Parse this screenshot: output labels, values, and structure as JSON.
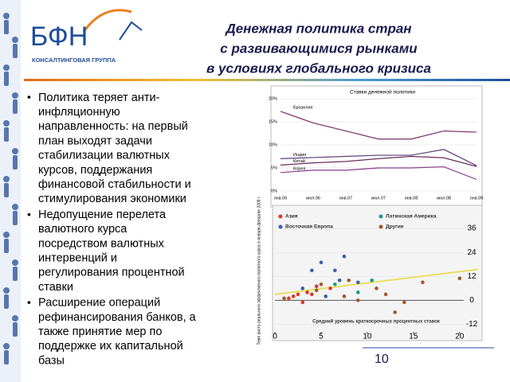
{
  "logo": {
    "name": "БФН",
    "subtitle": "КОНСАЛТИНГОВАЯ ГРУППА"
  },
  "title": [
    "Денежная политика стран",
    "с развивающимися рынками",
    "в условиях глобального кризиса"
  ],
  "bullets": [
    [
      "Политика теряет анти-",
      "инфляционную",
      "направленность: на первый",
      "план выходят задачи",
      "стабилизации валютных",
      "курсов, поддержания",
      "финансовой стабильности и",
      "стимулирования экономики"
    ],
    [
      "Недопущение перелета",
      "валютного курса",
      "посредством валютных",
      "интервенций и",
      "регулирования процентной",
      "ставки"
    ],
    [
      "Расширение операций",
      "рефинансирования банков, а",
      "также принятие мер по",
      "поддержке их капитальной",
      "базы"
    ]
  ],
  "page_number": "10",
  "chart_data": [
    {
      "type": "line",
      "title": "Ставки денежной политики",
      "categories": [
        "янв.06",
        "июл.06",
        "янв.07",
        "июл.07",
        "янв.08",
        "июл.08",
        "янв.09"
      ],
      "ylim": [
        0,
        20
      ],
      "yticks": [
        {
          "value": 0,
          "label": "0%"
        },
        {
          "value": 5,
          "label": "5%"
        },
        {
          "value": 10,
          "label": "10%"
        },
        {
          "value": 15,
          "label": "15%"
        },
        {
          "value": 20,
          "label": "20%"
        }
      ],
      "series": [
        {
          "name": "Бразилия",
          "color": "#7b2d6b",
          "values": [
            17.25,
            14.75,
            13,
            11.25,
            11.25,
            13,
            12.75
          ]
        },
        {
          "name": "Индия",
          "color": "#5a3d7a",
          "values": [
            7,
            7.25,
            7.5,
            7.75,
            7.75,
            9,
            5.5
          ]
        },
        {
          "name": "Китай",
          "color": "#6b2d5b",
          "values": [
            5.6,
            6.1,
            6.4,
            7,
            7.5,
            7.2,
            5.3
          ]
        },
        {
          "name": "Корея",
          "color": "#8a3a8a",
          "values": [
            4,
            4.5,
            4.5,
            5,
            5,
            5.25,
            2.5
          ]
        }
      ]
    },
    {
      "type": "scatter",
      "y_label": "Темп роста реального эффективного валютного курса в январе-феврале 2009 г.",
      "x_label": "Средний уровень краткосрочных процентных ставок",
      "xlim": [
        0,
        22
      ],
      "ylim": [
        -17,
        46
      ],
      "xticks": [
        0,
        5,
        10,
        15,
        20
      ],
      "yticks": [
        36,
        24,
        12,
        0,
        -12
      ],
      "trend": {
        "color": "#e8e060",
        "x": [
          0,
          22
        ],
        "y": [
          3,
          15.5
        ]
      },
      "series": [
        {
          "name": "Азия",
          "color": "#d9392b",
          "x": [
            1.5,
            2.5,
            3,
            4,
            4.5,
            6,
            2,
            3.5
          ],
          "y": [
            1,
            3,
            -1,
            3,
            7,
            6,
            2,
            4
          ]
        },
        {
          "name": "Латинская Америка",
          "color": "#1a9a8a",
          "x": [
            9,
            10.5,
            6.5
          ],
          "y": [
            4,
            10,
            8
          ]
        },
        {
          "name": "Восточная Европа",
          "color": "#3a5fb0",
          "x": [
            5,
            7.5,
            4,
            6.5,
            7,
            3,
            5.5,
            9
          ],
          "y": [
            19,
            22,
            15,
            15,
            10,
            6,
            2,
            9
          ]
        },
        {
          "name": "Другие",
          "color": "#a05a2c",
          "x": [
            5,
            8,
            11,
            9,
            14,
            16,
            20,
            13,
            1,
            4.5,
            12,
            7.5
          ],
          "y": [
            8,
            10,
            6,
            0,
            -1,
            9,
            11,
            -6,
            1,
            5,
            3,
            2
          ]
        }
      ]
    }
  ]
}
